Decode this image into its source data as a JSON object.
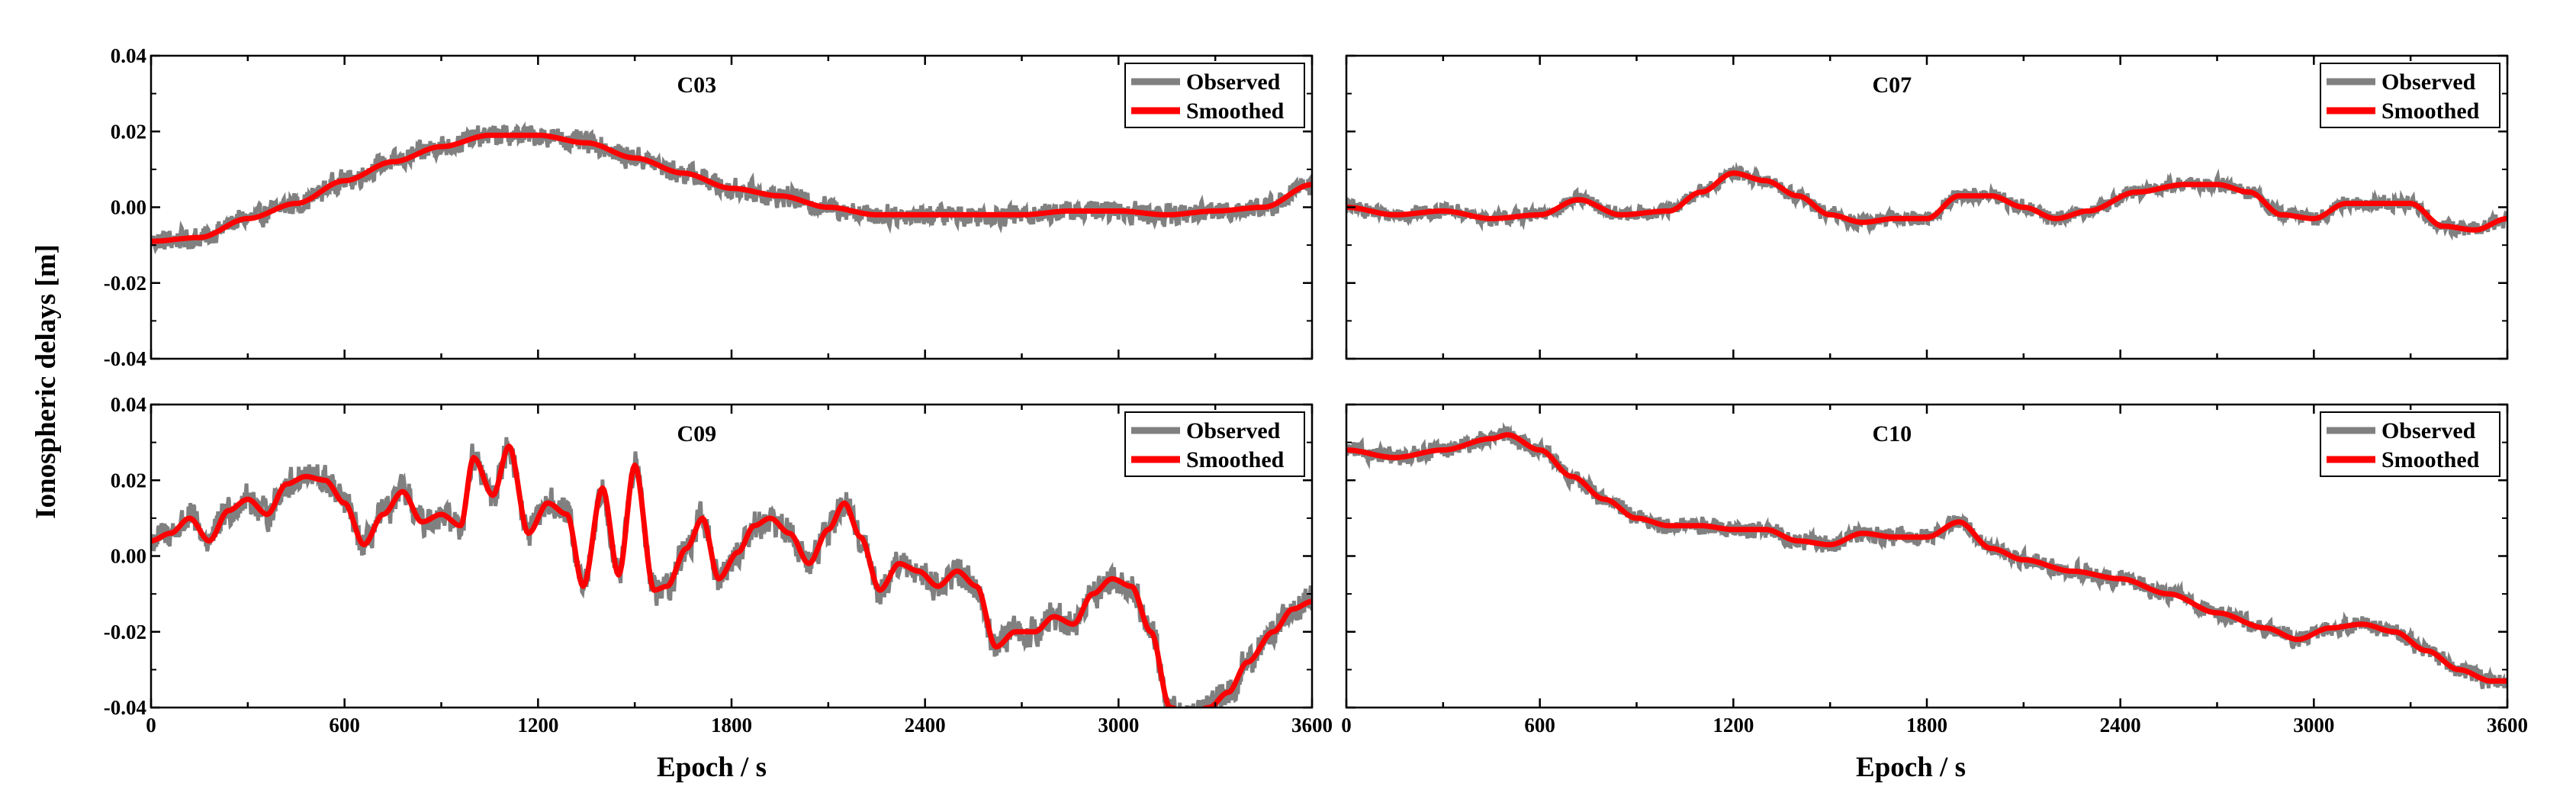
{
  "figure": {
    "ylabel": "Ionospheric delays [m]",
    "xlabel": "Epoch / s",
    "legend": {
      "observed": "Observed",
      "smoothed": "Smoothed"
    },
    "colors": {
      "observed": "#808080",
      "smoothed": "#ff0000",
      "axis": "#000000"
    }
  },
  "chart_data": [
    {
      "type": "line",
      "title": "C03",
      "xlim": [
        0,
        3600
      ],
      "ylim": [
        -0.04,
        0.04
      ],
      "xticks": [],
      "yticks": [
        "0.04",
        "0.02",
        "0.00",
        "-0.02",
        "-0.04"
      ],
      "series": [
        {
          "name": "Observed",
          "noise": 0.0035
        },
        {
          "name": "Smoothed",
          "x": [
            0,
            150,
            300,
            450,
            600,
            750,
            900,
            1050,
            1200,
            1350,
            1500,
            1650,
            1800,
            1950,
            2100,
            2250,
            2400,
            2550,
            2700,
            2850,
            3000,
            3150,
            3300,
            3450,
            3600
          ],
          "y": [
            -0.009,
            -0.008,
            -0.003,
            0.001,
            0.007,
            0.012,
            0.016,
            0.019,
            0.019,
            0.017,
            0.013,
            0.009,
            0.005,
            0.003,
            0.0,
            -0.002,
            -0.002,
            -0.002,
            -0.002,
            -0.001,
            -0.001,
            -0.002,
            -0.001,
            0.0,
            0.006
          ]
        }
      ]
    },
    {
      "type": "line",
      "title": "C07",
      "xlim": [
        0,
        3600
      ],
      "ylim": [
        -0.04,
        0.04
      ],
      "xticks": [],
      "yticks": [],
      "series": [
        {
          "name": "Observed",
          "noise": 0.0025
        },
        {
          "name": "Smoothed",
          "x": [
            0,
            150,
            300,
            450,
            600,
            720,
            850,
            1000,
            1100,
            1200,
            1300,
            1400,
            1500,
            1600,
            1700,
            1800,
            1900,
            2000,
            2100,
            2200,
            2300,
            2450,
            2600,
            2700,
            2800,
            2900,
            3000,
            3100,
            3200,
            3300,
            3400,
            3500,
            3600
          ],
          "y": [
            0.0,
            -0.002,
            -0.001,
            -0.003,
            -0.002,
            0.002,
            -0.002,
            -0.001,
            0.004,
            0.009,
            0.007,
            0.003,
            -0.002,
            -0.004,
            -0.003,
            -0.003,
            0.003,
            0.003,
            0.0,
            -0.003,
            -0.001,
            0.004,
            0.006,
            0.006,
            0.004,
            -0.002,
            -0.003,
            0.001,
            0.001,
            0.001,
            -0.005,
            -0.006,
            -0.003
          ]
        }
      ]
    },
    {
      "type": "line",
      "title": "C09",
      "xlim": [
        0,
        3600
      ],
      "ylim": [
        -0.04,
        0.04
      ],
      "xticks": [
        "0",
        "600",
        "1200",
        "1800",
        "2400",
        "3000",
        "3600"
      ],
      "yticks": [
        "0.04",
        "0.02",
        "0.00",
        "-0.02",
        "-0.04"
      ],
      "series": [
        {
          "name": "Observed",
          "noise": 0.005
        },
        {
          "name": "Smoothed",
          "x": [
            0,
            60,
            120,
            180,
            240,
            300,
            360,
            420,
            480,
            540,
            600,
            660,
            720,
            780,
            840,
            900,
            960,
            1000,
            1060,
            1110,
            1170,
            1230,
            1290,
            1340,
            1400,
            1450,
            1500,
            1560,
            1600,
            1660,
            1710,
            1760,
            1820,
            1870,
            1920,
            1980,
            2040,
            2100,
            2150,
            2200,
            2260,
            2320,
            2380,
            2440,
            2500,
            2560,
            2620,
            2680,
            2740,
            2800,
            2860,
            2920,
            2980,
            3040,
            3100,
            3160,
            3220,
            3280,
            3340,
            3400,
            3480,
            3540,
            3600
          ],
          "y": [
            0.004,
            0.006,
            0.01,
            0.004,
            0.012,
            0.015,
            0.011,
            0.019,
            0.021,
            0.02,
            0.014,
            0.003,
            0.011,
            0.017,
            0.009,
            0.011,
            0.008,
            0.026,
            0.016,
            0.029,
            0.006,
            0.014,
            0.011,
            -0.008,
            0.018,
            -0.005,
            0.024,
            -0.009,
            -0.008,
            0.002,
            0.01,
            -0.006,
            0.001,
            0.008,
            0.01,
            0.006,
            -0.002,
            0.007,
            0.014,
            0.005,
            -0.009,
            -0.002,
            -0.004,
            -0.008,
            -0.004,
            -0.008,
            -0.024,
            -0.02,
            -0.02,
            -0.016,
            -0.018,
            -0.01,
            -0.006,
            -0.008,
            -0.02,
            -0.04,
            -0.042,
            -0.04,
            -0.036,
            -0.028,
            -0.02,
            -0.014,
            -0.012
          ]
        }
      ]
    },
    {
      "type": "line",
      "title": "C10",
      "xlim": [
        0,
        3600
      ],
      "ylim": [
        -0.04,
        0.04
      ],
      "xticks": [
        "0",
        "600",
        "1200",
        "1800",
        "2400",
        "3000",
        "3600"
      ],
      "yticks": [],
      "series": [
        {
          "name": "Observed",
          "noise": 0.0028
        },
        {
          "name": "Smoothed",
          "x": [
            0,
            150,
            300,
            450,
            500,
            600,
            700,
            800,
            900,
            1000,
            1100,
            1200,
            1300,
            1400,
            1500,
            1600,
            1700,
            1800,
            1900,
            2000,
            2100,
            2250,
            2400,
            2550,
            2700,
            2850,
            2950,
            3050,
            3150,
            3250,
            3350,
            3450,
            3550,
            3600
          ],
          "y": [
            0.028,
            0.026,
            0.028,
            0.031,
            0.032,
            0.028,
            0.021,
            0.015,
            0.01,
            0.008,
            0.008,
            0.007,
            0.007,
            0.004,
            0.003,
            0.006,
            0.005,
            0.005,
            0.009,
            0.002,
            -0.001,
            -0.004,
            -0.006,
            -0.01,
            -0.015,
            -0.019,
            -0.022,
            -0.019,
            -0.018,
            -0.02,
            -0.025,
            -0.03,
            -0.033,
            -0.033
          ]
        }
      ]
    }
  ]
}
